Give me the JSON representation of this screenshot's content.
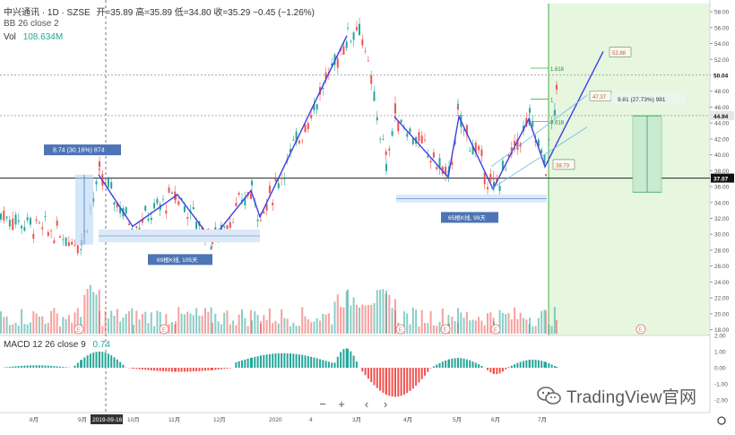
{
  "header": {
    "symbol": "中兴通讯 · 1D · SZSE",
    "ohlc": "开=35.89 高=35.89 低=34.80 收=35.29 −0.45 (−1.26%)",
    "bb": "BB 26 close 2",
    "vol_label": "Vol",
    "vol_value": "108.634M"
  },
  "macd": {
    "label": "MACD 12 26 close 9",
    "value": "0.74"
  },
  "colors": {
    "up": "#ef5350",
    "down": "#26a69a",
    "pattern": "#3f3fe0",
    "forecast_bg": "#e6f6df",
    "forecast_line": "#43b049"
  },
  "annotations": {
    "box1": "8.74 (30.16%) 874",
    "range1": "69根K线, 105天",
    "range2": "65根K线, 99天",
    "measure": "9.81 (27.73%) 981",
    "fib_1618": "1.618",
    "fib_1": "1",
    "fib_0618": "0.618",
    "target_high": "52.88",
    "target_mid": "47.37",
    "target_low": "38.73"
  },
  "price_axis": {
    "ticks": [
      "58.00",
      "56.00",
      "54.00",
      "52.00",
      "50.00",
      "48.00",
      "46.00",
      "44.00",
      "42.00",
      "40.00",
      "38.00",
      "36.00",
      "34.00",
      "32.00",
      "30.00",
      "28.00",
      "26.00",
      "24.00",
      "22.00",
      "20.00",
      "18.00"
    ],
    "highlight_high": "50.04",
    "highlight_last": "44.94",
    "highlight_support": "37.07",
    "range": [
      17.5,
      58.8
    ]
  },
  "macd_axis": {
    "ticks": [
      "2.00",
      "1.00",
      "0.00",
      "-1.00",
      "-2.00"
    ]
  },
  "time_axis": {
    "labels": [
      "8月",
      "9月",
      "2019-09-16",
      "10月",
      "11月",
      "12月",
      "2020",
      "4",
      "3月",
      "4月",
      "5月",
      "6月",
      "7月"
    ]
  },
  "event_markers": [
    "E",
    "E",
    "E",
    "E",
    "E",
    "E"
  ],
  "chart_data": {
    "type": "candlestick",
    "title": "",
    "series": [
      {
        "name": "price_path_key_points",
        "values": [
          {
            "x": "2019-08",
            "y": 32.5
          },
          {
            "x": "2019-09-04",
            "y": 29.0
          },
          {
            "x": "2019-09-16",
            "y": 37.5
          },
          {
            "x": "2019-10-20",
            "y": 31.0
          },
          {
            "x": "2019-11-10",
            "y": 35.0
          },
          {
            "x": "2019-12-10",
            "y": 29.3
          },
          {
            "x": "2019-12-30",
            "y": 35.5
          },
          {
            "x": "2020-01-03",
            "y": 32.2
          },
          {
            "x": "2020-02-25",
            "y": 55.0
          },
          {
            "x": "2020-03-05",
            "y": 56.5
          },
          {
            "x": "2020-03-20",
            "y": 39.0
          },
          {
            "x": "2020-03-25",
            "y": 45.0
          },
          {
            "x": "2020-04-25",
            "y": 37.2
          },
          {
            "x": "2020-05-05",
            "y": 45.0
          },
          {
            "x": "2020-05-28",
            "y": 35.7
          },
          {
            "x": "2020-06-20",
            "y": 44.5
          },
          {
            "x": "2020-06-30",
            "y": 38.7
          },
          {
            "x": "2020-07-06",
            "y": 47.5
          },
          {
            "x": "2020-07-07",
            "y": 35.29
          }
        ]
      }
    ],
    "levels": {
      "support": 37.07,
      "last": 44.94,
      "high_ref": 50.04
    },
    "targets": {
      "52.88": 52.88,
      "47.37": 47.37,
      "38.73": 38.73
    },
    "ylim": [
      17.5,
      58.8
    ],
    "grid": true
  }
}
